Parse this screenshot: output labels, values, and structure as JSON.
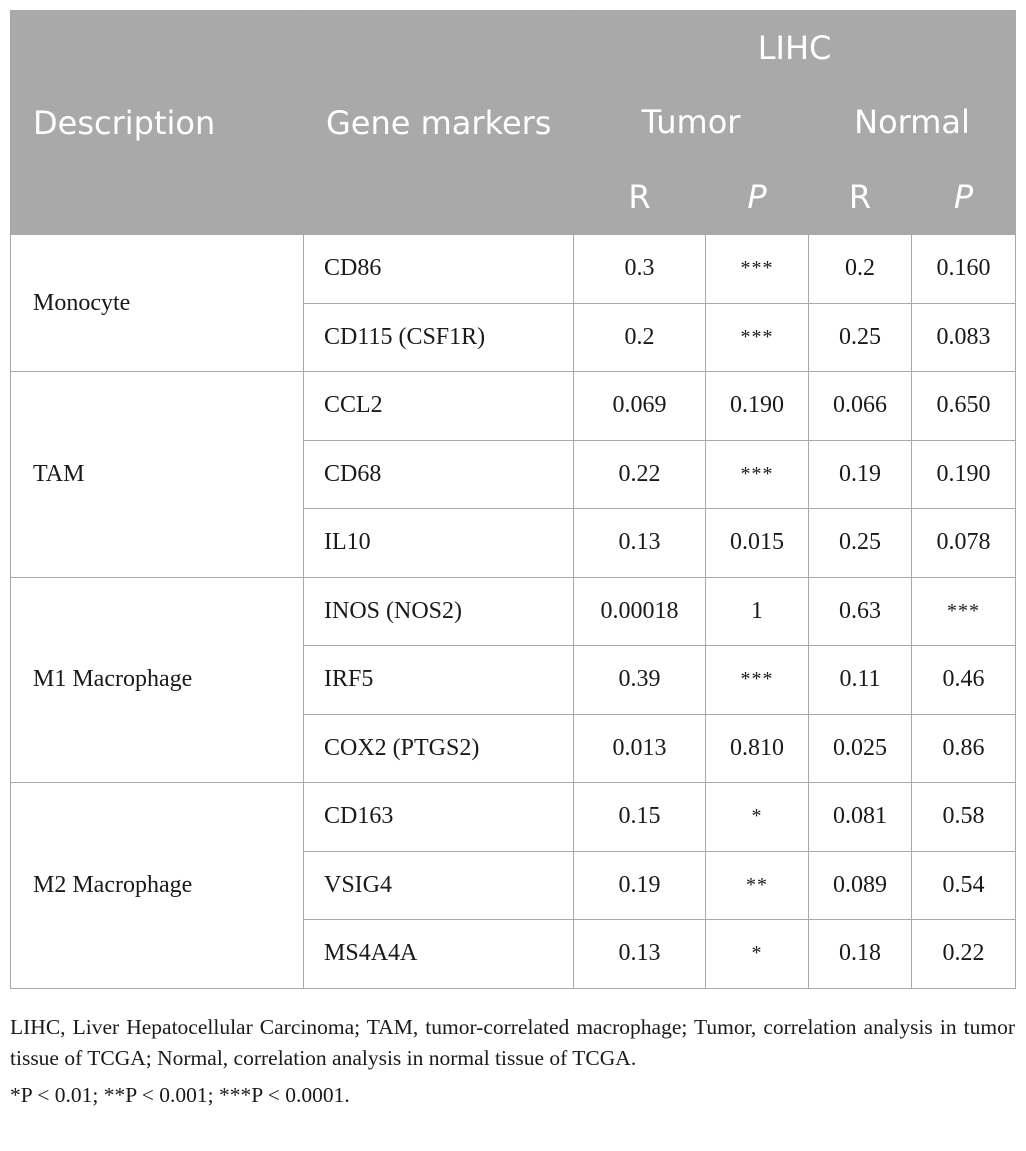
{
  "table": {
    "headers": {
      "description": "Description",
      "gene_markers": "Gene markers",
      "group": "LIHC",
      "tumor": "Tumor",
      "normal": "Normal",
      "r": "R",
      "p": "P"
    },
    "groups": [
      {
        "name": "Monocyte",
        "rows": [
          {
            "gene": "CD86",
            "tumor_r": "0.3",
            "tumor_p": "***",
            "normal_r": "0.2",
            "normal_p": "0.160"
          },
          {
            "gene": "CD115 (CSF1R)",
            "tumor_r": "0.2",
            "tumor_p": "***",
            "normal_r": "0.25",
            "normal_p": "0.083"
          }
        ]
      },
      {
        "name": "TAM",
        "rows": [
          {
            "gene": "CCL2",
            "tumor_r": "0.069",
            "tumor_p": "0.190",
            "normal_r": "0.066",
            "normal_p": "0.650"
          },
          {
            "gene": "CD68",
            "tumor_r": "0.22",
            "tumor_p": "***",
            "normal_r": "0.19",
            "normal_p": "0.190"
          },
          {
            "gene": "IL10",
            "tumor_r": "0.13",
            "tumor_p": "0.015",
            "normal_r": "0.25",
            "normal_p": "0.078"
          }
        ]
      },
      {
        "name": "M1 Macrophage",
        "rows": [
          {
            "gene": "INOS (NOS2)",
            "tumor_r": "0.00018",
            "tumor_p": "1",
            "normal_r": "0.63",
            "normal_p": "***"
          },
          {
            "gene": "IRF5",
            "tumor_r": "0.39",
            "tumor_p": "***",
            "normal_r": "0.11",
            "normal_p": "0.46"
          },
          {
            "gene": "COX2 (PTGS2)",
            "tumor_r": "0.013",
            "tumor_p": "0.810",
            "normal_r": "0.025",
            "normal_p": "0.86"
          }
        ]
      },
      {
        "name": "M2 Macrophage",
        "rows": [
          {
            "gene": "CD163",
            "tumor_r": "0.15",
            "tumor_p": "*",
            "normal_r": "0.081",
            "normal_p": "0.58"
          },
          {
            "gene": "VSIG4",
            "tumor_r": "0.19",
            "tumor_p": "**",
            "normal_r": "0.089",
            "normal_p": "0.54"
          },
          {
            "gene": "MS4A4A",
            "tumor_r": "0.13",
            "tumor_p": "*",
            "normal_r": "0.18",
            "normal_p": "0.22"
          }
        ]
      }
    ]
  },
  "notes": {
    "abbreviations": "LIHC, Liver Hepatocellular Carcinoma; TAM, tumor-correlated macrophage; Tumor, correlation analysis in tumor tissue of TCGA; Normal, correlation analysis in normal tissue of TCGA.",
    "footnote": "*P < 0.01; **P < 0.001; ***P < 0.0001."
  }
}
